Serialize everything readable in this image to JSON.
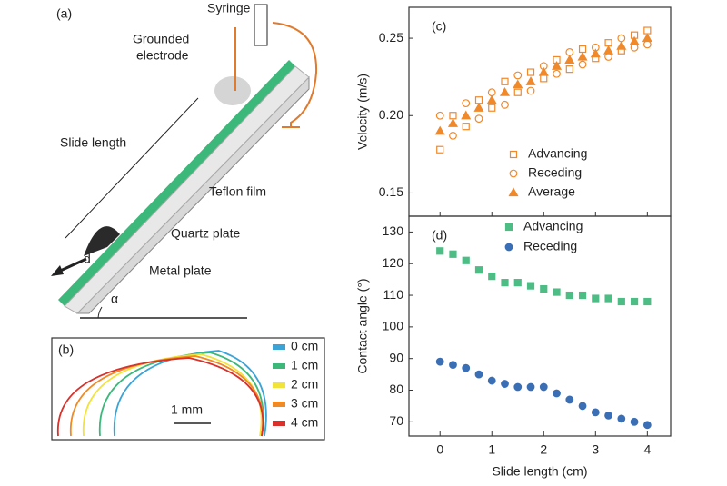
{
  "panel_a": {
    "label": "(a)",
    "syringe": "Syringe",
    "electrode": [
      "Grounded",
      "electrode"
    ],
    "slide_length": "Slide length",
    "teflon": "Teflon film",
    "quartz": "Quartz plate",
    "metal": "Metal plate",
    "d": "d",
    "alpha": "α"
  },
  "panel_b": {
    "label": "(b)",
    "scale_bar": "1 mm",
    "legend": [
      {
        "name": "0 cm",
        "color": "#3ba3d6"
      },
      {
        "name": "1 cm",
        "color": "#3cb87a"
      },
      {
        "name": "2 cm",
        "color": "#f2e33a"
      },
      {
        "name": "3 cm",
        "color": "#f08a24"
      },
      {
        "name": "4 cm",
        "color": "#d9312b"
      }
    ]
  },
  "chart_data": [
    {
      "type": "scatter",
      "panel_label": "(c)",
      "y_label": "Velocity (m/s)",
      "legend": "lower right",
      "x": [
        0,
        0.25,
        0.5,
        0.75,
        1,
        1.25,
        1.5,
        1.75,
        2,
        2.25,
        2.5,
        2.75,
        3,
        3.25,
        3.5,
        3.75,
        4
      ],
      "xlim": [
        -0.6,
        4.45
      ],
      "xticks": [
        0,
        1,
        2,
        3,
        4
      ],
      "ylim": [
        0.135,
        0.27
      ],
      "yticks": [
        0.15,
        {
          "value": 0.2,
          "label": "0.20"
        },
        0.25
      ],
      "series": [
        {
          "name": "Advancing",
          "color": "#f0892a",
          "marker": "square",
          "filled": false,
          "values": [
            0.178,
            0.2,
            0.193,
            0.21,
            0.205,
            0.222,
            0.215,
            0.228,
            0.224,
            0.236,
            0.23,
            0.243,
            0.237,
            0.247,
            0.242,
            0.252,
            0.255
          ]
        },
        {
          "name": "Receding",
          "color": "#f0892a",
          "marker": "circle",
          "filled": false,
          "values": [
            0.2,
            0.187,
            0.208,
            0.198,
            0.215,
            0.207,
            0.226,
            0.216,
            0.232,
            0.227,
            0.241,
            0.233,
            0.244,
            0.238,
            0.25,
            0.244,
            0.246
          ]
        },
        {
          "name": "Average",
          "color": "#f0892a",
          "marker": "triangle",
          "filled": true,
          "values": [
            0.19,
            0.195,
            0.2,
            0.205,
            0.21,
            0.215,
            0.22,
            0.222,
            0.228,
            0.232,
            0.236,
            0.238,
            0.24,
            0.242,
            0.245,
            0.248,
            0.25
          ]
        }
      ]
    },
    {
      "type": "scatter",
      "panel_label": "(d)",
      "x_label": "Slide length (cm)",
      "y_label": "Contact angle (°)",
      "legend": "upper center",
      "x": [
        0,
        0.25,
        0.5,
        0.75,
        1,
        1.25,
        1.5,
        1.75,
        2,
        2.25,
        2.5,
        2.75,
        3,
        3.25,
        3.5,
        3.75,
        4
      ],
      "xlim": [
        -0.6,
        4.45
      ],
      "xticks": [
        0,
        1,
        2,
        3,
        4
      ],
      "ylim": [
        65.5,
        135
      ],
      "yticks": [
        70,
        80,
        90,
        100,
        110,
        120,
        130
      ],
      "series": [
        {
          "name": "Advancing",
          "color": "#4dbd85",
          "marker": "square",
          "filled": true,
          "values": [
            124,
            123,
            121,
            118,
            116,
            114,
            114,
            113,
            112,
            111,
            110,
            110,
            109,
            109,
            108,
            108,
            108
          ]
        },
        {
          "name": "Receding",
          "color": "#3a6fb5",
          "marker": "circle",
          "filled": true,
          "values": [
            89,
            88,
            87,
            85,
            83,
            82,
            81,
            81,
            81,
            79,
            77,
            75,
            73,
            72,
            71,
            70,
            69
          ]
        }
      ]
    }
  ]
}
